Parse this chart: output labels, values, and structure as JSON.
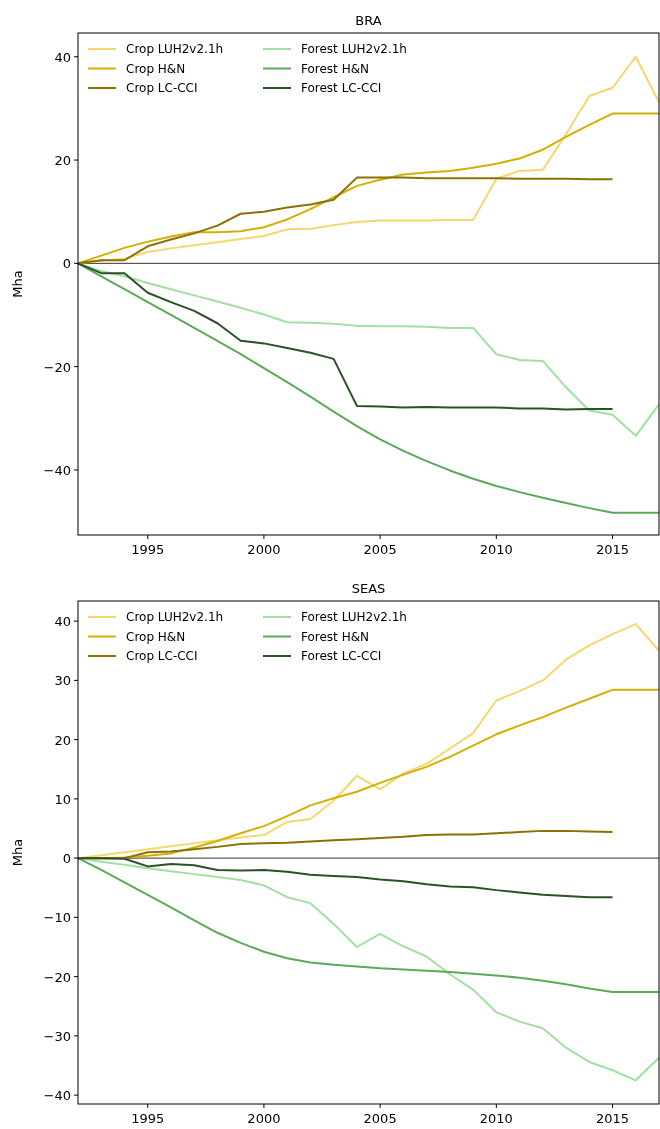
{
  "chart_data": [
    {
      "type": "line",
      "title": "BRA",
      "ylabel": "Mha",
      "x": [
        1992,
        1993,
        1994,
        1995,
        1996,
        1997,
        1998,
        1999,
        2000,
        2001,
        2002,
        2003,
        2004,
        2005,
        2006,
        2007,
        2008,
        2009,
        2010,
        2011,
        2012,
        2013,
        2014,
        2015,
        2016,
        2017
      ],
      "xlim": [
        1992,
        2017
      ],
      "xticks": [
        1995,
        2000,
        2005,
        2010,
        2015
      ],
      "ylim": [
        -52.6,
        44.6
      ],
      "yticks": [
        {
          "value": -40,
          "label": "−40"
        },
        {
          "value": -20,
          "label": "−20"
        },
        0,
        20,
        40
      ],
      "ref_lines": [
        {
          "axis": "y",
          "value": 0,
          "color": "#000000"
        }
      ],
      "legend": "top left",
      "grid": false,
      "series": [
        {
          "name": "Crop LUH2v2.1h",
          "color": "#f5d76e",
          "values": [
            0,
            0.5,
            0.9,
            2.2,
            2.9,
            3.5,
            4.1,
            4.7,
            5.3,
            6.6,
            6.7,
            7.4,
            8.0,
            8.3,
            8.3,
            8.3,
            8.4,
            8.4,
            16.4,
            17.9,
            18.1,
            25,
            32.4,
            34,
            40,
            31.2
          ]
        },
        {
          "name": "Crop H&N",
          "color": "#d4b000",
          "values": [
            0,
            1.5,
            3,
            4.2,
            5.2,
            6.0,
            6.0,
            6.2,
            7,
            8.5,
            10.5,
            12.8,
            15,
            16.2,
            17.2,
            17.6,
            17.9,
            18.5,
            19.3,
            20.3,
            22,
            24.5,
            26.8,
            29,
            29,
            29
          ]
        },
        {
          "name": "Crop LC-CCI",
          "color": "#8c7000",
          "values": [
            0,
            0.6,
            0.6,
            3.3,
            4.6,
            5.8,
            7.3,
            9.6,
            10,
            10.8,
            11.4,
            12.3,
            16.6,
            16.6,
            16.6,
            16.5,
            16.5,
            16.5,
            16.5,
            16.4,
            16.4,
            16.4,
            16.3,
            16.3,
            null,
            null
          ]
        },
        {
          "name": "Forest LUH2v2.1h",
          "color": "#a1e0a0",
          "values": [
            0,
            -1.5,
            -2.5,
            -3.8,
            -5,
            -6.2,
            -7.4,
            -8.6,
            -9.9,
            -11.4,
            -11.5,
            -11.7,
            -12.1,
            -12.2,
            -12.2,
            -12.3,
            -12.5,
            -12.5,
            -17.6,
            -18.7,
            -18.9,
            -24,
            -28.5,
            -29.3,
            -33.4,
            -27.3
          ]
        },
        {
          "name": "Forest H&N",
          "color": "#5aaa5a",
          "values": [
            0,
            -2.5,
            -5,
            -7.5,
            -10,
            -12.5,
            -15,
            -17.6,
            -20.3,
            -23,
            -25.8,
            -28.7,
            -31.5,
            -34.1,
            -36.3,
            -38.3,
            -40.1,
            -41.7,
            -43.1,
            -44.3,
            -45.4,
            -46.4,
            -47.4,
            -48.3,
            -48.3,
            -48.3
          ]
        },
        {
          "name": "Forest LC-CCI",
          "color": "#2a5228",
          "values": [
            0,
            -1.9,
            -1.9,
            -5.7,
            -7.5,
            -9.2,
            -11.6,
            -15,
            -15.5,
            -16.4,
            -17.3,
            -18.5,
            -27.6,
            -27.7,
            -27.9,
            -27.8,
            -27.9,
            -27.9,
            -27.9,
            -28.1,
            -28.1,
            -28.3,
            -28.2,
            -28.2,
            null,
            null
          ]
        }
      ]
    },
    {
      "type": "line",
      "title": "SEAS",
      "ylabel": "Mha",
      "x": [
        1992,
        1993,
        1994,
        1995,
        1996,
        1997,
        1998,
        1999,
        2000,
        2001,
        2002,
        2003,
        2004,
        2005,
        2006,
        2007,
        2008,
        2009,
        2010,
        2011,
        2012,
        2013,
        2014,
        2015,
        2016,
        2017
      ],
      "xlim": [
        1992,
        2017
      ],
      "xticks": [
        1995,
        2000,
        2005,
        2010,
        2015
      ],
      "ylim": [
        -41.5,
        43.4
      ],
      "yticks": [
        {
          "value": -40,
          "label": "−40"
        },
        {
          "value": -30,
          "label": "−30"
        },
        {
          "value": -20,
          "label": "−20"
        },
        {
          "value": -10,
          "label": "−10"
        },
        0,
        10,
        20,
        30,
        40
      ],
      "ref_lines": [
        {
          "axis": "y",
          "value": 0,
          "color": "#000000"
        }
      ],
      "legend": "top left",
      "grid": false,
      "series": [
        {
          "name": "Crop LUH2v2.1h",
          "color": "#f5d76e",
          "values": [
            0,
            0.5,
            1.0,
            1.5,
            2.0,
            2.5,
            3.0,
            3.5,
            3.9,
            6.1,
            6.6,
            9.7,
            13.9,
            11.6,
            14.3,
            15.9,
            18.5,
            21.1,
            26.6,
            28.2,
            30,
            33.5,
            35.9,
            37.8,
            39.5,
            35
          ]
        },
        {
          "name": "Crop H&N",
          "color": "#d4b000",
          "values": [
            0,
            0,
            0.1,
            0.4,
            0.8,
            1.8,
            2.9,
            4.2,
            5.4,
            7.1,
            8.9,
            10.1,
            11.2,
            12.7,
            14.1,
            15.4,
            17.1,
            19.0,
            20.9,
            22.4,
            23.8,
            25.4,
            26.9,
            28.4,
            28.4,
            28.4
          ]
        },
        {
          "name": "Crop LC-CCI",
          "color": "#8c7000",
          "values": [
            0,
            0,
            0,
            1.0,
            1.1,
            1.5,
            1.9,
            2.4,
            2.5,
            2.6,
            2.8,
            3.0,
            3.2,
            3.4,
            3.6,
            3.9,
            4.0,
            4.0,
            4.2,
            4.4,
            4.6,
            4.6,
            4.5,
            4.4,
            null,
            null
          ]
        },
        {
          "name": "Forest LUH2v2.1h",
          "color": "#a1e0a0",
          "values": [
            0,
            -0.6,
            -1.1,
            -1.7,
            -2.2,
            -2.7,
            -3.2,
            -3.7,
            -4.6,
            -6.6,
            -7.6,
            -11.1,
            -15.0,
            -12.8,
            -14.9,
            -16.6,
            -19.6,
            -22.2,
            -26,
            -27.6,
            -28.7,
            -32,
            -34.4,
            -35.8,
            -37.5,
            -33.7
          ]
        },
        {
          "name": "Forest H&N",
          "color": "#5aaa5a",
          "values": [
            0,
            -2,
            -4.1,
            -6.2,
            -8.3,
            -10.5,
            -12.6,
            -14.3,
            -15.8,
            -16.9,
            -17.6,
            -18.0,
            -18.3,
            -18.6,
            -18.8,
            -19.0,
            -19.2,
            -19.5,
            -19.8,
            -20.2,
            -20.7,
            -21.3,
            -22.0,
            -22.6,
            -22.6,
            -22.6
          ]
        },
        {
          "name": "Forest LC-CCI",
          "color": "#2a5228",
          "values": [
            0,
            0,
            -0.1,
            -1.4,
            -1.0,
            -1.2,
            -2.0,
            -2.1,
            -2.0,
            -2.3,
            -2.8,
            -3.0,
            -3.2,
            -3.6,
            -3.9,
            -4.4,
            -4.8,
            -4.9,
            -5.4,
            -5.8,
            -6.2,
            -6.4,
            -6.6,
            -6.6,
            null,
            null
          ]
        }
      ]
    }
  ]
}
